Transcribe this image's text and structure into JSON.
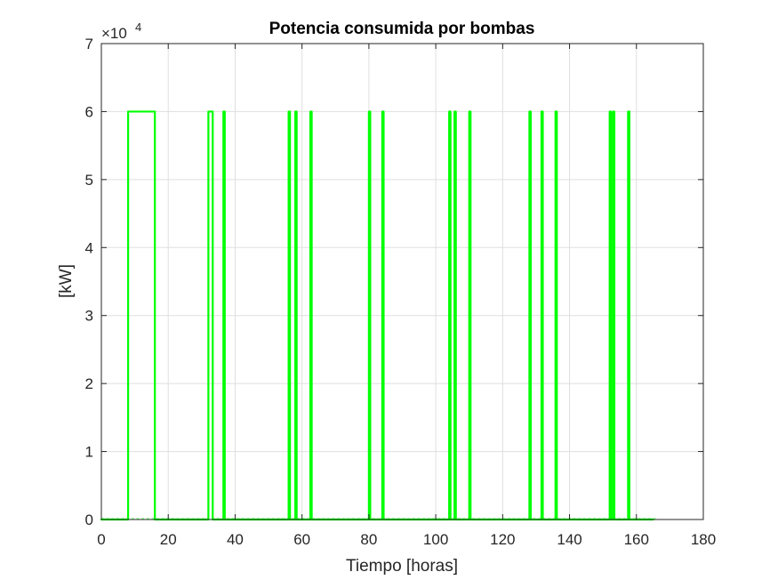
{
  "chart_data": {
    "type": "line",
    "title": "Potencia consumida por bombas",
    "xlabel": "Tiempo [horas]",
    "ylabel": "[kW]",
    "y_exponent_label": "×10",
    "y_exponent": "4",
    "xlim": [
      0,
      180
    ],
    "ylim": [
      0,
      70000
    ],
    "xticks": [
      0,
      20,
      40,
      60,
      80,
      100,
      120,
      140,
      160,
      180
    ],
    "yticks": [
      0,
      10000,
      20000,
      30000,
      40000,
      50000,
      60000,
      70000
    ],
    "ytick_labels": [
      "0",
      "1",
      "2",
      "3",
      "4",
      "5",
      "6",
      "7"
    ],
    "grid": true,
    "line_color": "#00ff00",
    "series": [
      {
        "x": [
          0,
          8,
          8,
          16,
          16,
          32,
          32,
          33.3,
          33.3,
          36.5,
          36.5,
          36.9,
          36.9,
          56,
          56,
          56.4,
          56.4,
          58,
          58,
          58.4,
          58.4,
          62.5,
          62.5,
          62.9,
          62.9,
          80,
          80,
          80.4,
          80.4,
          84,
          84,
          84.4,
          84.4,
          104,
          104,
          104.4,
          104.4,
          105.6,
          105.6,
          106,
          106,
          110,
          110,
          110.4,
          110.4,
          128,
          128,
          128.4,
          128.4,
          131.6,
          131.6,
          132,
          132,
          135.8,
          135.8,
          136.2,
          136.2,
          152,
          152,
          152.4,
          152.4,
          153,
          153,
          153.4,
          153.4,
          157.5,
          157.5,
          157.9,
          157.9,
          165
        ],
        "y": [
          0,
          0,
          60000,
          60000,
          0,
          0,
          60000,
          60000,
          0,
          0,
          60000,
          60000,
          0,
          0,
          60000,
          60000,
          0,
          0,
          60000,
          60000,
          0,
          0,
          60000,
          60000,
          0,
          0,
          60000,
          60000,
          0,
          0,
          60000,
          60000,
          0,
          0,
          60000,
          60000,
          0,
          0,
          60000,
          60000,
          0,
          0,
          60000,
          60000,
          0,
          0,
          60000,
          60000,
          0,
          0,
          60000,
          60000,
          0,
          0,
          60000,
          60000,
          0,
          0,
          60000,
          60000,
          0,
          0,
          60000,
          60000,
          0,
          0,
          60000,
          60000,
          0,
          0
        ]
      }
    ]
  }
}
